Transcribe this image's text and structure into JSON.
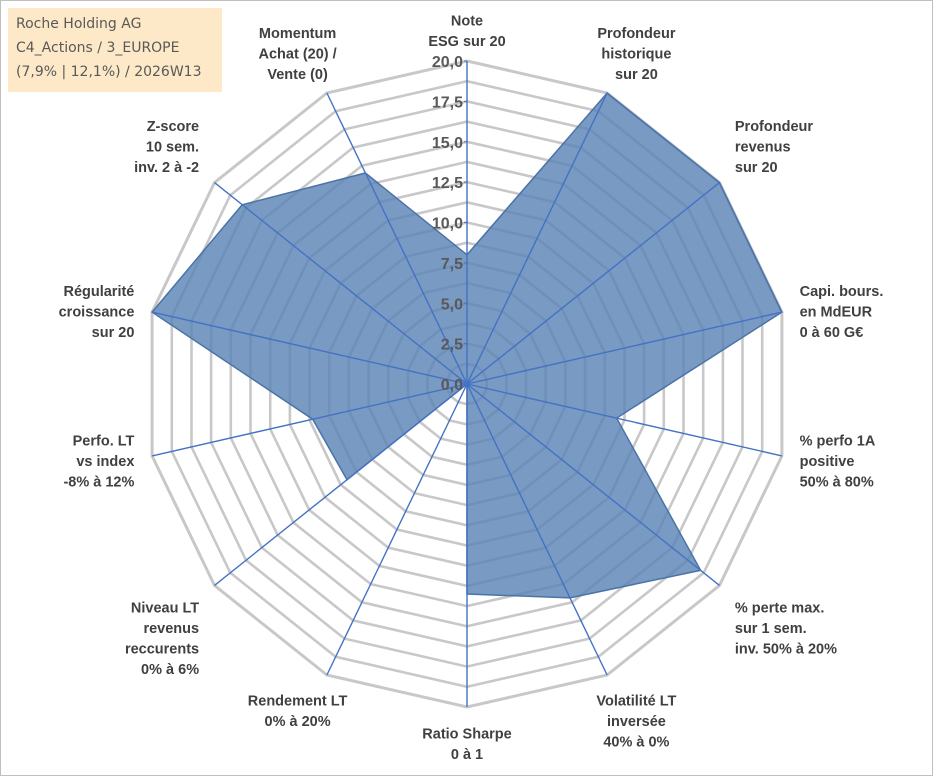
{
  "info_box": {
    "line1": "Roche Holding AG",
    "line2": "C4_Actions / 3_EUROPE",
    "line3": "(7,9% | 12,1%) / 2026W13"
  },
  "colors": {
    "fill": "#5b84b6",
    "edge": "#4b73a8",
    "spoke": "#4472c4",
    "grid": "#c8c8c8"
  },
  "chart_data": {
    "type": "radar",
    "title": "",
    "range": [
      0,
      20
    ],
    "ticks": [
      "0,0",
      "2,5",
      "5,0",
      "7,5",
      "10,0",
      "12,5",
      "15,0",
      "17,5",
      "20,0"
    ],
    "tick_values": [
      0,
      2.5,
      5,
      7.5,
      10,
      12.5,
      15,
      17.5,
      20
    ],
    "categories": [
      [
        "Note",
        "ESG sur 20"
      ],
      [
        "Profondeur",
        "historique",
        "sur 20"
      ],
      [
        "Profondeur",
        "revenus",
        "sur 20"
      ],
      [
        "Capi. bours.",
        "en MdEUR",
        "0 à 60 G€"
      ],
      [
        "% perfo 1A",
        "positive",
        "50% à 80%"
      ],
      [
        "% perte max.",
        "sur 1 sem.",
        "inv. 50% à 20%"
      ],
      [
        "Volatilité LT",
        "inversée",
        "40% à 0%"
      ],
      [
        "Ratio Sharpe",
        "0 à 1"
      ],
      [
        "Rendement LT",
        "0% à 20%"
      ],
      [
        "Niveau LT",
        "revenus",
        "reccurents",
        "0% à 6%"
      ],
      [
        "Perfo. LT",
        "vs index",
        "-8% à 12%"
      ],
      [
        "Régularité",
        "croissance",
        "sur 20"
      ],
      [
        "Z-score",
        "10 sem.",
        "inv. 2 à -2"
      ],
      [
        "Momentum",
        "Achat (20) /",
        "Vente (0)"
      ]
    ],
    "series": [
      {
        "name": "Roche Holding AG",
        "values": [
          8,
          20,
          20,
          20,
          9.5,
          18.5,
          14.7,
          13,
          0,
          9.5,
          9.8,
          20,
          17.8,
          14.5
        ]
      }
    ]
  }
}
